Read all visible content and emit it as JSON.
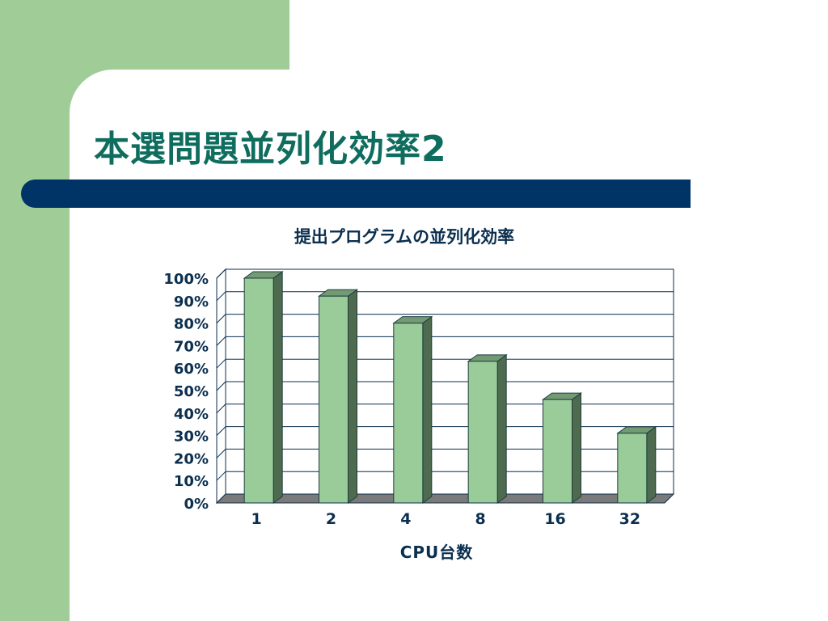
{
  "slide": {
    "title": "本選問題並列化効率2"
  },
  "colors": {
    "green_band": "#9fcc97",
    "accent_bar": "#003366",
    "title_text": "#0e6d5e",
    "bar_front": "#99cc99",
    "bar_side": "#4f6b4f",
    "bar_top": "#739a73",
    "text_dark": "#0b2f4f"
  },
  "chart_data": {
    "type": "bar",
    "title": "提出プログラムの並列化効率",
    "xlabel": "CPU台数",
    "ylabel": "",
    "categories": [
      "1",
      "2",
      "4",
      "8",
      "16",
      "32"
    ],
    "values": [
      100,
      92,
      80,
      63,
      46,
      31
    ],
    "ylim": [
      0,
      100
    ],
    "yticks": [
      "0%",
      "10%",
      "20%",
      "30%",
      "40%",
      "50%",
      "60%",
      "70%",
      "80%",
      "90%",
      "100%"
    ],
    "grid": true,
    "legend": "none",
    "style": "3d"
  }
}
